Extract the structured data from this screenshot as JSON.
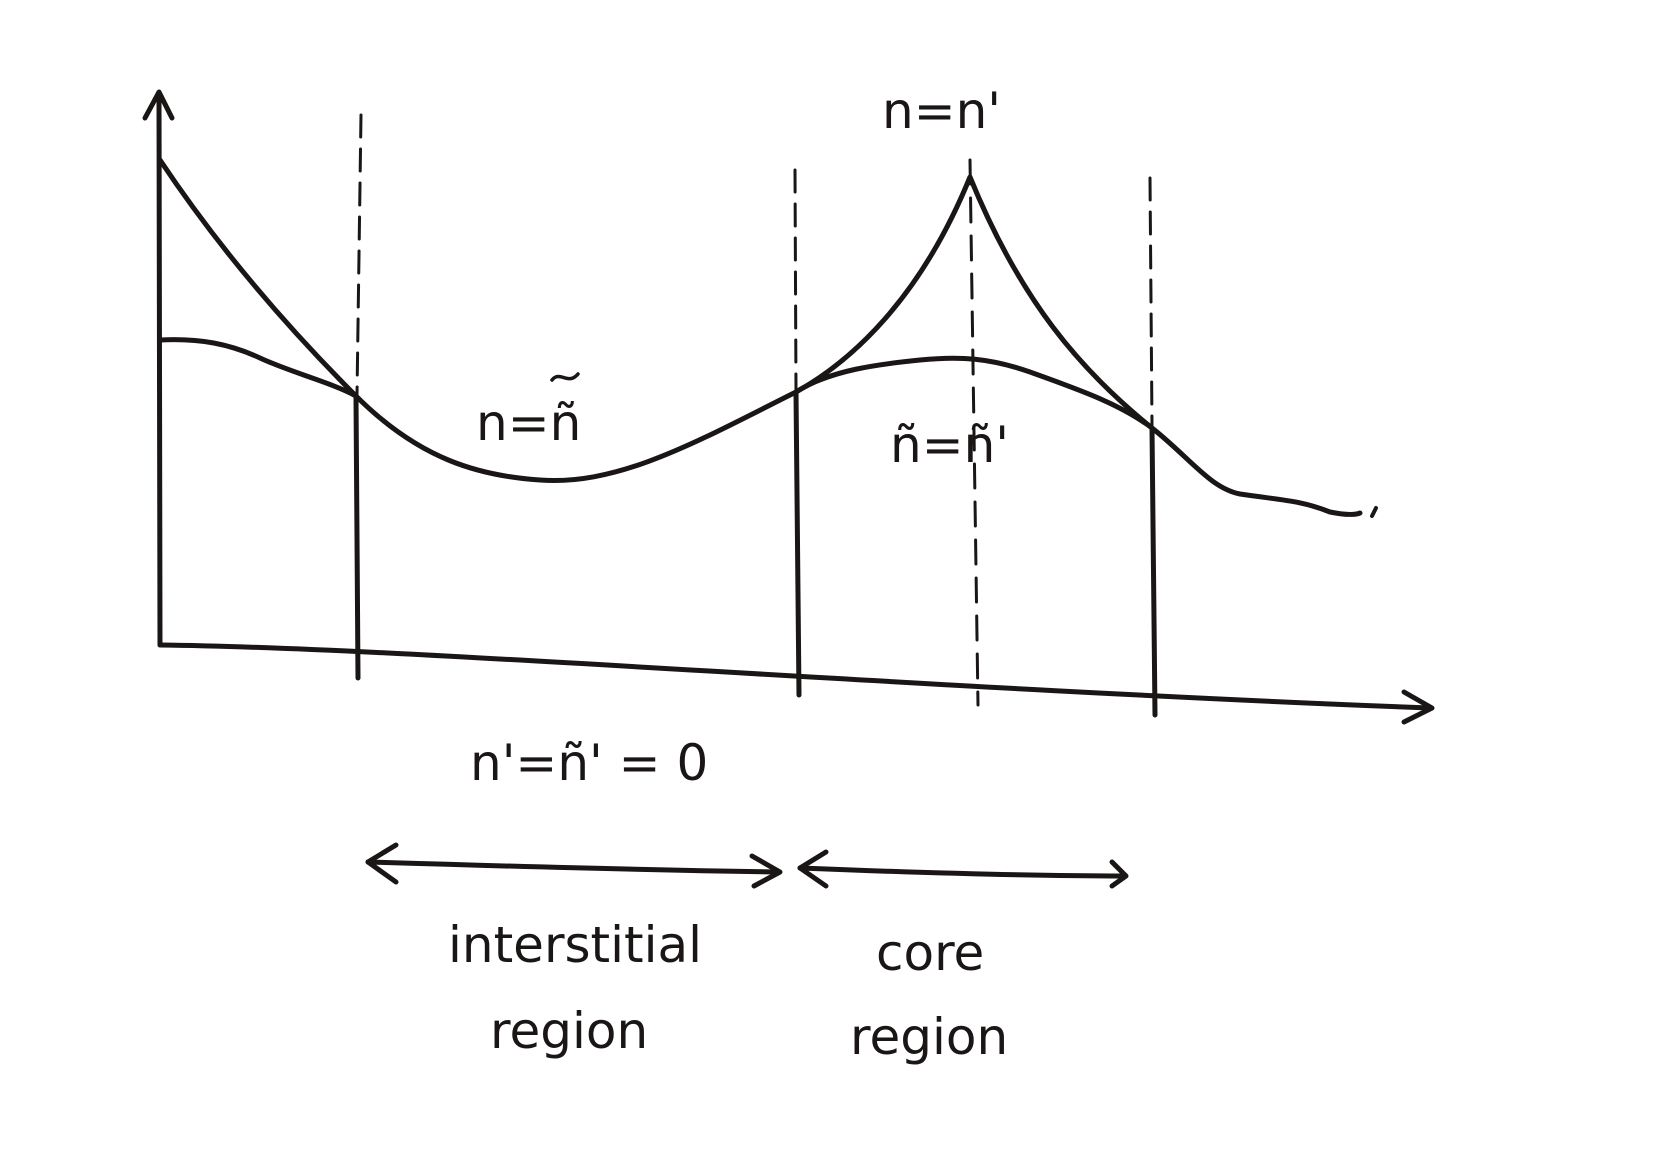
{
  "labels": {
    "peak": "n=n'",
    "interstitial_relation": "n=ñ",
    "core_relation": "ñ=ñ'",
    "boundary_condition": "n'=ñ' = 0",
    "interstitial_line1": "interstitial",
    "interstitial_line2": "region",
    "core_line1": "core",
    "core_line2": "region"
  },
  "colors": {
    "ink": "#1a1615",
    "paper": "#ffffff"
  }
}
